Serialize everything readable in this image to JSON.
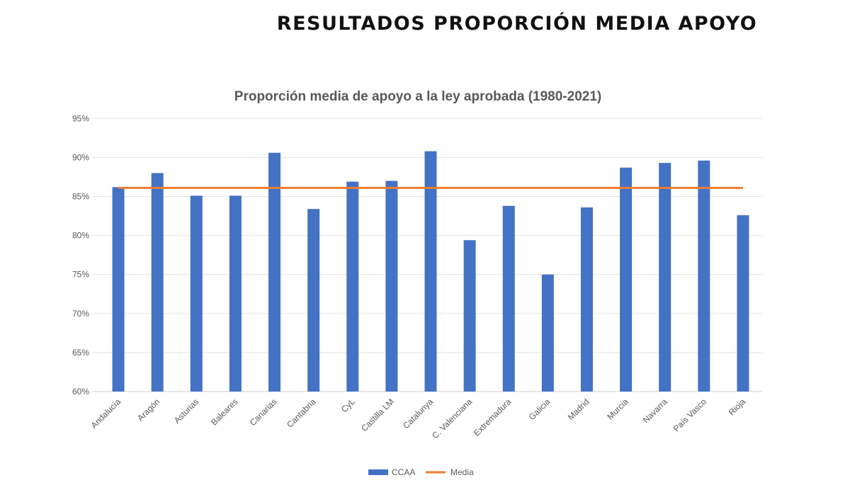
{
  "header": {
    "title": "RESULTADOS PROPORCIÓN MEDIA APOYO"
  },
  "chart_data": {
    "type": "bar",
    "title": "Proporción media de apoyo a la ley aprobada (1980-2021)",
    "xlabel": "",
    "ylabel": "",
    "ylim": [
      60,
      95
    ],
    "yticks": [
      60,
      65,
      70,
      75,
      80,
      85,
      90,
      95
    ],
    "ytick_labels": [
      "60%",
      "65%",
      "70%",
      "75%",
      "80%",
      "85%",
      "90%",
      "95%"
    ],
    "grid": true,
    "legend_position": "bottom",
    "categories": [
      "Andalucía",
      "Aragón",
      "Asturias",
      "Baleares",
      "Canarias",
      "Cantabria",
      "CyL",
      "Castilla LM",
      "Catalunya",
      "C. Valenciana",
      "Extremadura",
      "Galicia",
      "Madrid",
      "Murcia",
      "Navarra",
      "País Vasco",
      "Rioja"
    ],
    "series": [
      {
        "name": "CCAA",
        "type": "bar",
        "color": "#4472C4",
        "values": [
          86.2,
          88.0,
          85.1,
          85.1,
          90.6,
          83.4,
          86.9,
          87.0,
          90.8,
          79.4,
          83.8,
          75.0,
          83.6,
          88.7,
          89.3,
          89.6,
          82.6
        ]
      },
      {
        "name": "Media",
        "type": "line",
        "color": "#ED7D31",
        "values": [
          86.1,
          86.1,
          86.1,
          86.1,
          86.1,
          86.1,
          86.1,
          86.1,
          86.1,
          86.1,
          86.1,
          86.1,
          86.1,
          86.1,
          86.1,
          86.1,
          86.1
        ]
      }
    ]
  }
}
